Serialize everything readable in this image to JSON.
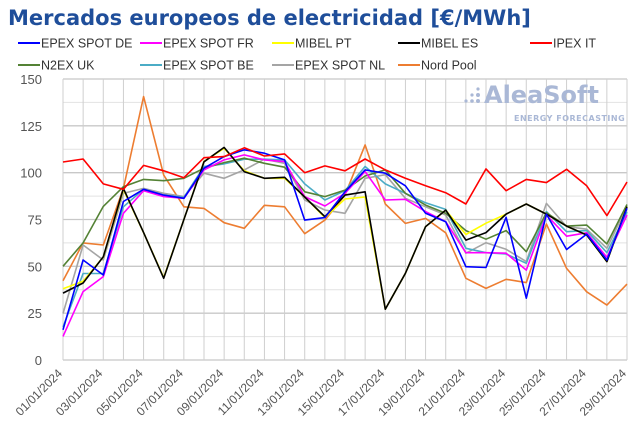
{
  "chart_data": {
    "type": "line",
    "title": "Mercados europeos de electricidad [€/MWh]",
    "xlabel": "",
    "ylabel": "",
    "ylim": [
      0,
      150
    ],
    "yticks": [
      "0",
      "25",
      "50",
      "75",
      "100",
      "125",
      "150"
    ],
    "grid": true,
    "legend_placement": "top",
    "x": [
      "01/01/2024",
      "02/01/2024",
      "03/01/2024",
      "04/01/2024",
      "05/01/2024",
      "06/01/2024",
      "07/01/2024",
      "08/01/2024",
      "09/01/2024",
      "10/01/2024",
      "11/01/2024",
      "12/01/2024",
      "13/01/2024",
      "14/01/2024",
      "15/01/2024",
      "16/01/2024",
      "17/01/2024",
      "18/01/2024",
      "19/01/2024",
      "20/01/2024",
      "21/01/2024",
      "22/01/2024",
      "23/01/2024",
      "24/01/2024",
      "25/01/2024",
      "26/01/2024",
      "27/01/2024",
      "28/01/2024",
      "29/01/2024"
    ],
    "xtick_labels": [
      "01/01/2024",
      "03/01/2024",
      "05/01/2024",
      "07/01/2024",
      "09/01/2024",
      "11/01/2024",
      "13/01/2024",
      "15/01/2024",
      "17/01/2024",
      "19/01/2024",
      "21/01/2024",
      "23/01/2024",
      "25/01/2024",
      "27/01/2024",
      "29/01/2024"
    ],
    "series": [
      {
        "name": "Nord Pool",
        "color": "#ed7d31",
        "values": [
          42.3,
          62.5,
          61.4,
          91.6,
          140.6,
          98.7,
          81.8,
          80.9,
          73.3,
          70.3,
          82.6,
          81.8,
          67.4,
          74.7,
          88,
          114.8,
          83.3,
          72.9,
          75.6,
          67.9,
          43.6,
          38.2,
          43.1,
          41.3,
          72.6,
          48.9,
          36.4,
          29.3,
          40.5
        ]
      },
      {
        "name": "EPEX SPOT NL",
        "color": "#a5a5a5",
        "values": [
          24.8,
          61.4,
          53.4,
          89,
          91.6,
          89,
          87.2,
          99.7,
          97,
          101.5,
          107.2,
          105,
          85.4,
          80,
          78.3,
          97,
          98.9,
          86.3,
          81.8,
          77.4,
          57,
          62.6,
          59.1,
          52.5,
          83.6,
          71.2,
          69.8,
          59.6,
          81.9
        ]
      },
      {
        "name": "EPEX SPOT BE",
        "color": "#4bacc6",
        "values": [
          17.6,
          46.2,
          46.2,
          81.8,
          91.1,
          88,
          86.8,
          103.3,
          104.7,
          107.2,
          107.2,
          106.8,
          94,
          85.4,
          90.4,
          103.3,
          94,
          89,
          83.9,
          80.4,
          59.6,
          57.3,
          56.6,
          51.6,
          79.2,
          68.5,
          69.1,
          57.3,
          79
        ]
      },
      {
        "name": "N2EX UK",
        "color": "#548235",
        "values": [
          50,
          62.5,
          82,
          92.5,
          96.4,
          95.7,
          97,
          102.4,
          105.4,
          107.7,
          105,
          102.9,
          89.8,
          87.2,
          90.7,
          98.2,
          101.5,
          89,
          82.7,
          78.3,
          69.1,
          64.5,
          69.1,
          57.8,
          78.6,
          71.5,
          72,
          62,
          83
        ]
      },
      {
        "name": "EPEX SPOT FR",
        "color": "#ff00ff",
        "values": [
          12.6,
          36.5,
          44.5,
          78.3,
          90.4,
          87.2,
          86.3,
          101.5,
          106.8,
          109.5,
          106.8,
          105.9,
          87.2,
          82.2,
          89,
          100.6,
          85.4,
          85.8,
          79.2,
          73.8,
          57.3,
          57.3,
          57,
          48,
          77.4,
          66.1,
          67.9,
          54.8,
          77.4
        ]
      },
      {
        "name": "MIBEL PT",
        "color": "#ffff00",
        "values": [
          38,
          42,
          55,
          91,
          68,
          44,
          75,
          106,
          113,
          101,
          97,
          97,
          87,
          76,
          86,
          87,
          27.1,
          46.3,
          71.2,
          80,
          67,
          73,
          77.9,
          83.3,
          77.9,
          71.5,
          66.7,
          52.5,
          81.9
        ]
      },
      {
        "name": "MIBEL ES",
        "color": "#000000",
        "values": [
          35.7,
          41.1,
          55.1,
          91.6,
          68,
          43.6,
          75,
          105.8,
          113.5,
          100.5,
          97,
          97.5,
          87,
          76.5,
          88,
          89.8,
          27.1,
          46.3,
          71.2,
          80,
          64,
          68,
          77.9,
          83.3,
          77.9,
          71.5,
          66.7,
          52.5,
          81.9
        ]
      },
      {
        "name": "EPEX SPOT DE",
        "color": "#0000ff",
        "values": [
          16.1,
          53.4,
          45.4,
          84.6,
          91.1,
          88,
          86.3,
          102.4,
          108.6,
          112.2,
          110.4,
          106.8,
          74.7,
          76,
          89.8,
          101.5,
          99.7,
          93,
          78.3,
          73.8,
          49.8,
          49.4,
          76.2,
          33,
          77.9,
          59,
          67.2,
          53.4,
          81
        ]
      },
      {
        "name": "IPEX IT",
        "color": "#ff0000",
        "values": [
          105.7,
          107.3,
          94,
          91.1,
          103.9,
          101,
          97.3,
          108,
          108.6,
          113.3,
          108.9,
          110,
          100,
          103.6,
          101,
          107.3,
          101.5,
          97,
          93,
          89.3,
          83.3,
          102,
          90.4,
          96.4,
          94.7,
          101.8,
          93,
          77.1,
          95
        ]
      }
    ],
    "legend_order": [
      "EPEX SPOT DE",
      "EPEX SPOT FR",
      "MIBEL PT",
      "MIBEL ES",
      "IPEX IT",
      "N2EX UK",
      "EPEX SPOT BE",
      "EPEX SPOT NL",
      "Nord Pool"
    ]
  },
  "watermark": {
    "brand": "AleaSoft",
    "tagline": "ENERGY FORECASTING"
  }
}
